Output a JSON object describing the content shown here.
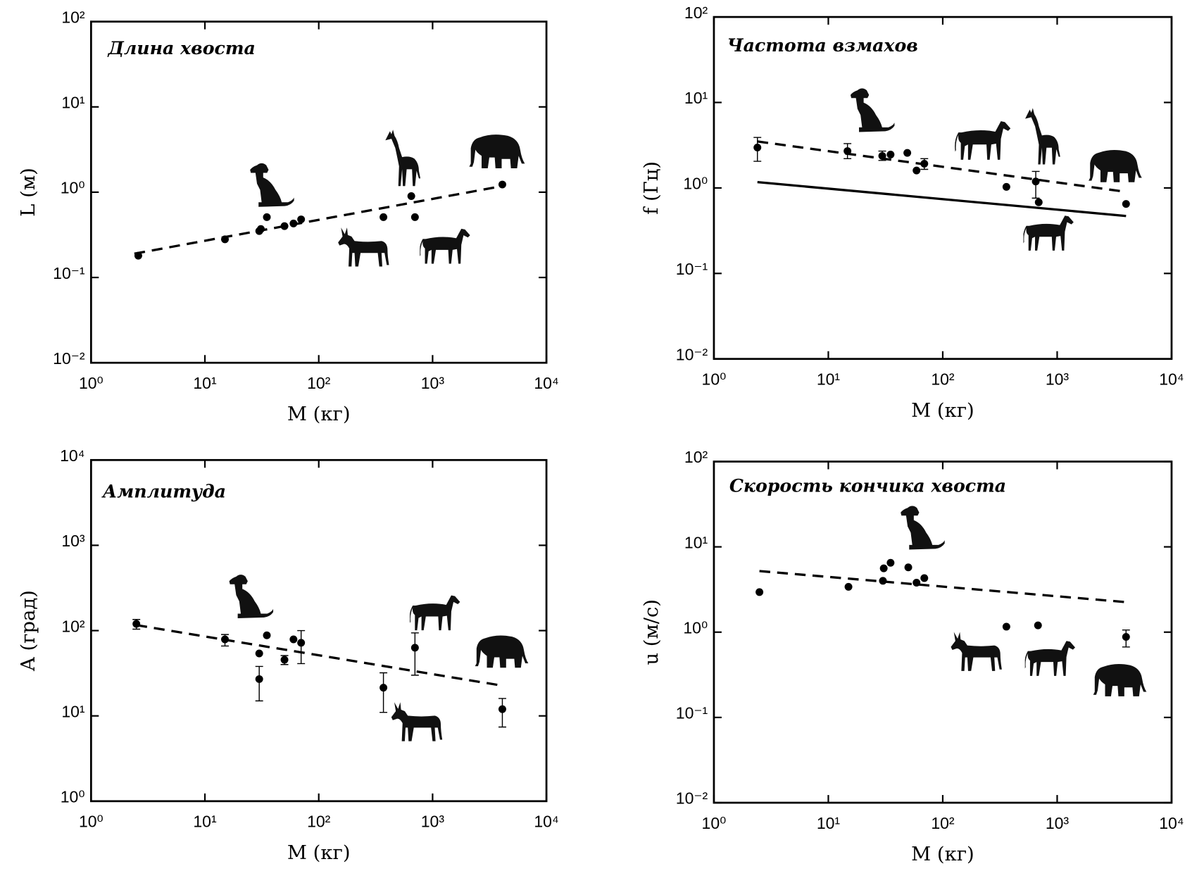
{
  "chart_data": [
    {
      "type": "scatter",
      "title": "Длина хвоста",
      "xlabel": "M (кг)",
      "ylabel": "L (м)",
      "xscale": "log",
      "yscale": "log",
      "xlim": [
        1,
        10000
      ],
      "ylim": [
        0.01,
        100
      ],
      "xticks": [
        {
          "value": 1,
          "label": "10⁰"
        },
        {
          "value": 10,
          "label": "10¹"
        },
        {
          "value": 100,
          "label": "10²"
        },
        {
          "value": 1000,
          "label": "10³"
        },
        {
          "value": 10000,
          "label": "10⁴"
        }
      ],
      "yticks": [
        {
          "value": 0.01,
          "label": "10⁻²"
        },
        {
          "value": 0.1,
          "label": "10⁻¹"
        },
        {
          "value": 1,
          "label": "10⁰"
        },
        {
          "value": 10,
          "label": "10¹"
        },
        {
          "value": 100,
          "label": "10²"
        }
      ],
      "series": [
        {
          "style": "markers",
          "color": "#000000",
          "x": [
            2.6,
            15,
            30,
            31,
            35,
            50,
            60,
            70,
            370,
            650,
            700,
            4100
          ],
          "values": [
            0.18,
            0.28,
            0.35,
            0.37,
            0.51,
            0.4,
            0.43,
            0.48,
            0.51,
            0.9,
            0.51,
            1.23
          ]
        },
        {
          "style": "dashed",
          "color": "#000000",
          "x": [
            2.4,
            4100
          ],
          "values": [
            0.19,
            1.18
          ]
        }
      ]
    },
    {
      "type": "scatter",
      "title": "Частота взмахов",
      "xlabel": "M (кг)",
      "ylabel": "f (Гц)",
      "xscale": "log",
      "yscale": "log",
      "xlim": [
        1,
        10000
      ],
      "ylim": [
        0.01,
        100
      ],
      "xticks": [
        {
          "value": 1,
          "label": "10⁰"
        },
        {
          "value": 10,
          "label": "10¹"
        },
        {
          "value": 100,
          "label": "10²"
        },
        {
          "value": 1000,
          "label": "10³"
        },
        {
          "value": 10000,
          "label": "10⁴"
        }
      ],
      "yticks": [
        {
          "value": 0.01,
          "label": "10⁻²"
        },
        {
          "value": 0.1,
          "label": "10⁻¹"
        },
        {
          "value": 1,
          "label": "10⁰"
        },
        {
          "value": 10,
          "label": "10¹"
        },
        {
          "value": 100,
          "label": "10²"
        }
      ],
      "series": [
        {
          "style": "markers",
          "color": "#000000",
          "x": [
            2.4,
            14.7,
            29.6,
            35,
            49,
            59,
            69,
            360,
            650,
            690,
            4000
          ],
          "values": [
            2.97,
            2.7,
            2.37,
            2.46,
            2.57,
            1.6,
            1.92,
            1.03,
            1.19,
            0.68,
            0.65
          ],
          "err_low": [
            2.05,
            2.2,
            2.1,
            null,
            null,
            null,
            1.65,
            null,
            0.76,
            null,
            null
          ],
          "err_high": [
            3.9,
            3.3,
            2.7,
            null,
            null,
            null,
            2.2,
            null,
            1.56,
            null,
            null
          ]
        },
        {
          "style": "dashed",
          "color": "#000000",
          "x": [
            2.4,
            4000
          ],
          "values": [
            3.5,
            0.9
          ]
        },
        {
          "style": "solid",
          "color": "#000000",
          "x": [
            2.4,
            4000
          ],
          "values": [
            1.17,
            0.47
          ]
        }
      ]
    },
    {
      "type": "scatter",
      "title": "Амплитуда",
      "xlabel": "M (кг)",
      "ylabel": "A (град)",
      "xscale": "log",
      "yscale": "log",
      "xlim": [
        1,
        10000
      ],
      "ylim": [
        1,
        10000
      ],
      "xticks": [
        {
          "value": 1,
          "label": "10⁰"
        },
        {
          "value": 10,
          "label": "10¹"
        },
        {
          "value": 100,
          "label": "10²"
        },
        {
          "value": 1000,
          "label": "10³"
        },
        {
          "value": 10000,
          "label": "10⁴"
        }
      ],
      "yticks": [
        {
          "value": 1,
          "label": "10⁰"
        },
        {
          "value": 10,
          "label": "10¹"
        },
        {
          "value": 100,
          "label": "10²"
        },
        {
          "value": 1000,
          "label": "10³"
        },
        {
          "value": 10000,
          "label": "10⁴"
        }
      ],
      "series": [
        {
          "style": "markers",
          "color": "#000000",
          "x": [
            2.5,
            15,
            30,
            30,
            35,
            50,
            60,
            70,
            370,
            700,
            4100
          ],
          "values": [
            120,
            79,
            54,
            27,
            88,
            45.5,
            79,
            72,
            21.4,
            63,
            12
          ],
          "err_low": [
            104,
            66,
            null,
            15,
            null,
            40,
            null,
            41,
            11,
            30,
            7.4
          ],
          "err_high": [
            135,
            90,
            null,
            38,
            null,
            51,
            null,
            100,
            32,
            94,
            16
          ]
        },
        {
          "style": "dashed",
          "color": "#000000",
          "x": [
            2.5,
            3800
          ],
          "values": [
            116,
            23
          ]
        }
      ]
    },
    {
      "type": "scatter",
      "title": "Скорость кончика хвоста",
      "xlabel": "M (кг)",
      "ylabel": "u (м/с)",
      "xscale": "log",
      "yscale": "log",
      "xlim": [
        1,
        10000
      ],
      "ylim": [
        0.01,
        100
      ],
      "xticks": [
        {
          "value": 1,
          "label": "10⁰"
        },
        {
          "value": 10,
          "label": "10¹"
        },
        {
          "value": 100,
          "label": "10²"
        },
        {
          "value": 1000,
          "label": "10³"
        },
        {
          "value": 10000,
          "label": "10⁴"
        }
      ],
      "yticks": [
        {
          "value": 0.01,
          "label": "10⁻²"
        },
        {
          "value": 0.1,
          "label": "10⁻¹"
        },
        {
          "value": 1,
          "label": "10⁰"
        },
        {
          "value": 10,
          "label": "10¹"
        },
        {
          "value": 100,
          "label": "10²"
        }
      ],
      "series": [
        {
          "style": "markers",
          "color": "#000000",
          "x": [
            2.5,
            15,
            30.5,
            30,
            35,
            50,
            59,
            69,
            360,
            680,
            4000
          ],
          "values": [
            2.95,
            3.4,
            5.6,
            4.0,
            6.5,
            5.75,
            3.8,
            4.3,
            1.16,
            1.2,
            0.88
          ],
          "err_low": [
            null,
            null,
            null,
            null,
            null,
            null,
            null,
            null,
            null,
            null,
            0.67
          ],
          "err_high": [
            null,
            null,
            null,
            null,
            null,
            null,
            null,
            null,
            null,
            null,
            1.06
          ]
        },
        {
          "style": "dashed",
          "color": "#000000",
          "x": [
            2.5,
            4000
          ],
          "values": [
            5.2,
            2.25
          ]
        }
      ]
    }
  ]
}
